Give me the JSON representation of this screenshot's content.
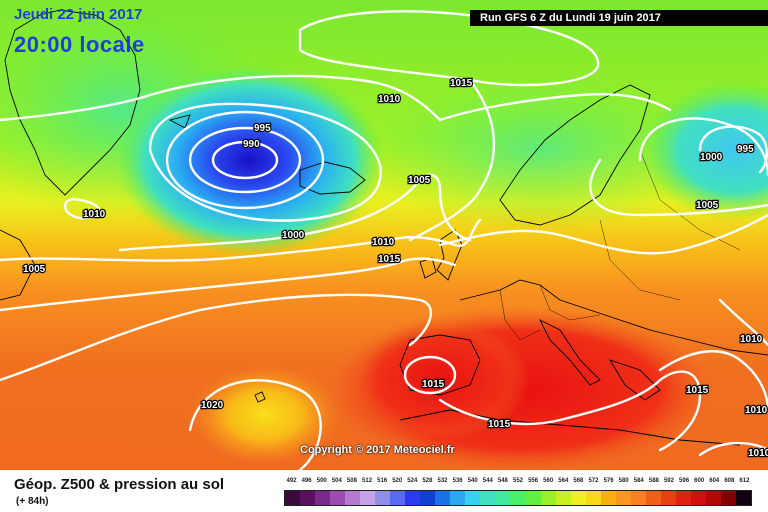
{
  "header": {
    "date": "Jeudi 22 juin 2017",
    "time": "20:00 locale",
    "run": "Run GFS 6 Z du Lundi 19 juin 2017"
  },
  "copyright": "Copyright © 2017 Meteociel.fr",
  "footer": {
    "title": "Géop. Z500 & pression au sol",
    "subtitle": "(+ 84h)"
  },
  "legend": {
    "values": [
      "492",
      "496",
      "500",
      "504",
      "508",
      "512",
      "516",
      "520",
      "524",
      "528",
      "532",
      "536",
      "540",
      "544",
      "548",
      "552",
      "556",
      "560",
      "564",
      "568",
      "572",
      "576",
      "580",
      "584",
      "588",
      "592",
      "596",
      "600",
      "604",
      "608",
      "612"
    ],
    "colors": [
      "#3a0a3a",
      "#5a1060",
      "#7a2a8c",
      "#9a4cb0",
      "#b37ad0",
      "#c8a2e6",
      "#8f8fe8",
      "#5a6af2",
      "#2a3cf0",
      "#1040d0",
      "#1c70e8",
      "#2aa8f0",
      "#3ad0f0",
      "#40e0c0",
      "#40e8a0",
      "#48f068",
      "#60f040",
      "#98f028",
      "#c8f020",
      "#f0f020",
      "#f8d818",
      "#f8b010",
      "#f89820",
      "#f88020",
      "#f06018",
      "#e84010",
      "#e02010",
      "#d01010",
      "#b00808",
      "#800000",
      "#100010"
    ]
  },
  "isobars": [
    {
      "value": "1015"
    },
    {
      "value": "1010"
    },
    {
      "value": "995"
    },
    {
      "value": "990"
    },
    {
      "value": "1005"
    },
    {
      "value": "1000"
    },
    {
      "value": "1010"
    },
    {
      "value": "1015"
    },
    {
      "value": "1005"
    },
    {
      "value": "1010"
    },
    {
      "value": "1000"
    },
    {
      "value": "995"
    },
    {
      "value": "1005"
    },
    {
      "value": "1015"
    },
    {
      "value": "1015"
    },
    {
      "value": "1020"
    },
    {
      "value": "1015"
    },
    {
      "value": "1015"
    },
    {
      "value": "1010"
    },
    {
      "value": "1010"
    },
    {
      "value": "1010"
    }
  ]
}
